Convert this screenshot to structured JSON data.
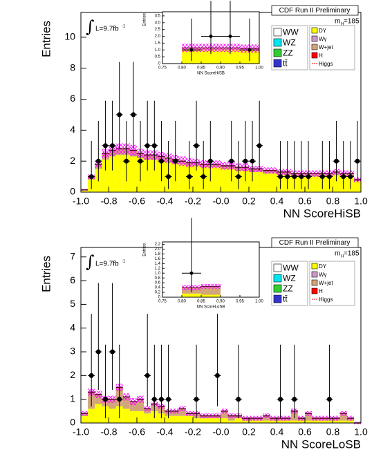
{
  "chart_data": [
    {
      "type": "stacked_histogram",
      "xlabel": "NN ScoreHiSB",
      "ylabel": "Entries",
      "run_label": "CDF Run II Preliminary",
      "integral": "∫",
      "lumi": "L=9.7fb",
      "lumi_exp": "-1",
      "mass": "m",
      "mass_sub": "H",
      "mass_value": "=185",
      "xlim": [
        -1,
        1
      ],
      "ylim": [
        0,
        11.6
      ],
      "xticks": [
        {
          "value": -1,
          "label": "-1.0"
        },
        -0.8,
        -0.6,
        -0.4,
        -0.2,
        {
          "value": 0,
          "label": "-0.0"
        },
        0.2,
        0.4,
        0.6,
        0.8,
        {
          "value": 1,
          "label": "1.0"
        }
      ],
      "yticks": [
        0,
        2,
        4,
        6,
        8,
        10
      ],
      "bins": [
        -1,
        -0.95,
        -0.9,
        -0.85,
        -0.8,
        -0.75,
        -0.7,
        -0.65,
        -0.6,
        -0.55,
        -0.5,
        -0.45,
        -0.4,
        -0.35,
        -0.3,
        -0.25,
        -0.2,
        -0.15,
        -0.1,
        -0.05,
        0,
        0.05,
        0.1,
        0.15,
        0.2,
        0.25,
        0.3,
        0.35,
        0.4,
        0.45,
        0.5,
        0.55,
        0.6,
        0.65,
        0.7,
        0.75,
        0.8,
        0.85,
        0.9,
        0.95,
        1
      ],
      "series": [
        {
          "name": "WW",
          "color": "#ffffff"
        },
        {
          "name": "WZ",
          "color": "#00e5ee"
        },
        {
          "name": "ZZ",
          "color": "#33cc33"
        },
        {
          "name": "tt̄",
          "color": "#3333cc"
        },
        {
          "name": "DY",
          "color": "#ffff00",
          "values": [
            0.1,
            0.8,
            1.5,
            2.1,
            2.3,
            2.4,
            2.4,
            2.3,
            2.2,
            2.1,
            2.1,
            2.0,
            1.9,
            1.8,
            1.8,
            1.7,
            1.7,
            1.6,
            1.6,
            1.6,
            1.5,
            1.5,
            1.4,
            1.4,
            1.3,
            1.3,
            1.2,
            1.2,
            1.1,
            1.1,
            1.0,
            1.0,
            1.0,
            1.0,
            1.0,
            1.0,
            1.1,
            1.0,
            1.0,
            0.7
          ]
        },
        {
          "name": "Wγ",
          "color": "#cc99cc"
        },
        {
          "name": "W+jet",
          "color": "#d2a679",
          "values": [
            0.05,
            0.2,
            0.3,
            0.4,
            0.4,
            0.4,
            0.4,
            0.4,
            0.3,
            0.3,
            0.3,
            0.3,
            0.3,
            0.3,
            0.2,
            0.2,
            0.2,
            0.2,
            0.2,
            0.2,
            0.2,
            0.2,
            0.2,
            0.2,
            0.2,
            0.2,
            0.2,
            0.2,
            0.2,
            0.2,
            0.2,
            0.2,
            0.2,
            0.2,
            0.2,
            0.2,
            0.2,
            0.2,
            0.2,
            0.1
          ]
        },
        {
          "name": "H",
          "color": "#ff0000"
        },
        {
          "name": "Higgs",
          "color": "#ff0000",
          "line_style": "dashed"
        }
      ],
      "uncertainty": [
        0.05,
        0.15,
        0.25,
        0.3,
        0.35,
        0.35,
        0.35,
        0.35,
        0.3,
        0.3,
        0.3,
        0.3,
        0.3,
        0.3,
        0.3,
        0.3,
        0.25,
        0.25,
        0.25,
        0.25,
        0.25,
        0.25,
        0.25,
        0.25,
        0.2,
        0.2,
        0.2,
        0.2,
        0.2,
        0.2,
        0.2,
        0.2,
        0.2,
        0.2,
        0.2,
        0.2,
        0.2,
        0.2,
        0.2,
        0.15
      ],
      "points": {
        "color": "#000000",
        "x": [
          -0.925,
          -0.875,
          -0.825,
          -0.775,
          -0.725,
          -0.675,
          -0.625,
          -0.575,
          -0.525,
          -0.475,
          -0.425,
          -0.375,
          -0.325,
          -0.225,
          -0.175,
          -0.125,
          -0.075,
          0.075,
          0.125,
          0.175,
          0.225,
          0.275,
          0.425,
          0.475,
          0.525,
          0.575,
          0.625,
          0.725,
          0.775,
          0.825,
          0.875,
          0.925,
          0.975
        ],
        "y": [
          1,
          2,
          3,
          3,
          5,
          2,
          5,
          2,
          3,
          3,
          2,
          1,
          2,
          1,
          3,
          1,
          2,
          2,
          1,
          2,
          2,
          3,
          1,
          1,
          1,
          1,
          1,
          1,
          1,
          2,
          1,
          1,
          2
        ],
        "yerr_low": [
          0.8,
          1.3,
          1.6,
          1.6,
          2.2,
          1.3,
          2.2,
          1.3,
          1.6,
          1.6,
          1.3,
          0.8,
          1.3,
          0.8,
          1.6,
          0.8,
          1.3,
          1.3,
          0.8,
          1.3,
          1.3,
          1.6,
          0.8,
          0.8,
          0.8,
          0.8,
          0.8,
          0.8,
          0.8,
          1.3,
          0.8,
          0.8,
          1.3
        ],
        "yerr_high": [
          2.3,
          2.6,
          2.9,
          2.9,
          3.4,
          2.6,
          3.4,
          2.6,
          2.9,
          2.9,
          2.6,
          2.3,
          2.6,
          2.3,
          2.9,
          2.3,
          2.6,
          2.6,
          2.3,
          2.6,
          2.6,
          2.9,
          2.3,
          2.3,
          2.3,
          2.3,
          2.3,
          2.3,
          2.3,
          2.6,
          2.3,
          2.3,
          2.6
        ]
      },
      "inset": {
        "xlabel": "NN ScoreHiSB",
        "ylabel": "Entries",
        "xlim": [
          0.75,
          1
        ],
        "ylim": [
          0,
          3.8
        ],
        "xticks": [
          0.75,
          {
            "value": 0.8,
            "label": "0.80"
          },
          0.85,
          {
            "value": 0.9,
            "label": "0.90"
          },
          0.95,
          {
            "value": 1,
            "label": "1.00"
          }
        ],
        "yticks": [
          0,
          0.5,
          {
            "value": 1,
            "label": "1.0"
          },
          1.5,
          {
            "value": 2,
            "label": "2.0"
          },
          2.5,
          {
            "value": 3,
            "label": "3.0"
          },
          3.5
        ],
        "bins": [
          0.75,
          0.8,
          0.85,
          0.9,
          0.95,
          1
        ],
        "series": [
          {
            "color": "#ffff00",
            "values": [
              0,
              1.0,
              1.0,
              1.0,
              1.0
            ]
          },
          {
            "color": "#d2a679",
            "values": [
              0,
              0.15,
              0.15,
              0.15,
              0.1
            ]
          }
        ],
        "uncertainty": [
          0,
          0.3,
          0.3,
          0.3,
          0.3
        ],
        "points": {
          "color": "#000000",
          "x": [
            0.825,
            0.875,
            0.925,
            0.975
          ],
          "y": [
            1,
            2,
            2,
            1
          ],
          "yerr_low": [
            0.8,
            1.3,
            1.3,
            0.8
          ],
          "yerr_high": [
            2.3,
            2.6,
            2.6,
            2.3
          ]
        }
      }
    },
    {
      "type": "stacked_histogram",
      "xlabel": "NN ScoreLoSB",
      "ylabel": "Entries",
      "run_label": "CDF Run II Preliminary",
      "integral": "∫",
      "lumi": "L=9.7fb",
      "lumi_exp": "-1",
      "mass": "m",
      "mass_sub": "H",
      "mass_value": "=185",
      "xlim": [
        -1,
        1
      ],
      "ylim": [
        0,
        7.4
      ],
      "xticks": [
        {
          "value": -1,
          "label": "-1.0"
        },
        -0.8,
        -0.6,
        -0.4,
        -0.2,
        {
          "value": 0,
          "label": "-0.0"
        },
        0.2,
        0.4,
        0.6,
        0.8,
        {
          "value": 1,
          "label": "1.0"
        }
      ],
      "yticks": [
        0,
        1,
        2,
        3,
        4,
        5,
        6,
        7
      ],
      "bins": [
        -1,
        -0.95,
        -0.9,
        -0.85,
        -0.8,
        -0.75,
        -0.7,
        -0.65,
        -0.6,
        -0.55,
        -0.5,
        -0.45,
        -0.4,
        -0.35,
        -0.3,
        -0.25,
        -0.2,
        -0.15,
        -0.1,
        -0.05,
        0,
        0.05,
        0.1,
        0.15,
        0.2,
        0.25,
        0.3,
        0.35,
        0.4,
        0.45,
        0.5,
        0.55,
        0.6,
        0.65,
        0.7,
        0.75,
        0.8,
        0.85,
        0.9,
        0.95,
        1
      ],
      "series": [
        {
          "name": "WW",
          "color": "#ffffff"
        },
        {
          "name": "WZ",
          "color": "#00e5ee"
        },
        {
          "name": "ZZ",
          "color": "#33cc33"
        },
        {
          "name": "tt̄",
          "color": "#3333cc"
        },
        {
          "name": "DY",
          "color": "#ffff00",
          "values": [
            0.3,
            0.6,
            0.8,
            0.7,
            0.6,
            0.7,
            0.6,
            0.5,
            0.5,
            0.4,
            0.5,
            0.4,
            0.3,
            0.3,
            0.3,
            0.3,
            0.2,
            0.2,
            0.2,
            0.2,
            0.2,
            0.1,
            0.2,
            0.1,
            0.1,
            0.1,
            0.1,
            0.1,
            0.1,
            0.1,
            0.1,
            0.1,
            0.1,
            0.1,
            0.1,
            0.1,
            0.1,
            0.1,
            0.1,
            0.0
          ]
        },
        {
          "name": "Wγ",
          "color": "#cc99cc"
        },
        {
          "name": "W+jet",
          "color": "#d2a679",
          "values": [
            0.1,
            0.7,
            0.4,
            0.3,
            0.4,
            0.8,
            0.5,
            0.4,
            0.5,
            0.2,
            0.3,
            0.3,
            0.2,
            0.2,
            0.3,
            0.1,
            0.2,
            0.1,
            0.1,
            0.1,
            0.3,
            0.2,
            0.1,
            0.1,
            0.1,
            0.1,
            0.2,
            0.1,
            0.1,
            0.1,
            0.4,
            0.1,
            0.3,
            0.1,
            0.1,
            0.1,
            0.1,
            0.3,
            0.1,
            0.0
          ]
        },
        {
          "name": "H",
          "color": "#ff0000"
        },
        {
          "name": "Higgs",
          "color": "#ff0000",
          "line_style": "dashed"
        }
      ],
      "uncertainty": [
        0.1,
        0.15,
        0.15,
        0.15,
        0.15,
        0.15,
        0.15,
        0.15,
        0.15,
        0.1,
        0.1,
        0.1,
        0.1,
        0.1,
        0.1,
        0.1,
        0.1,
        0.1,
        0.1,
        0.1,
        0.1,
        0.1,
        0.1,
        0.1,
        0.1,
        0.1,
        0.1,
        0.1,
        0.1,
        0.1,
        0.1,
        0.1,
        0.1,
        0.1,
        0.1,
        0.1,
        0.1,
        0.1,
        0.1,
        0.05
      ],
      "points": {
        "color": "#000000",
        "x": [
          -0.925,
          -0.875,
          -0.825,
          -0.775,
          -0.725,
          -0.525,
          -0.475,
          -0.425,
          -0.375,
          -0.175,
          -0.025,
          0.125,
          0.425,
          0.525,
          0.775
        ],
        "y": [
          2,
          3,
          1,
          3,
          1,
          2,
          1,
          1,
          1,
          1,
          2,
          1,
          1,
          1,
          1
        ],
        "yerr_low": [
          1.3,
          1.6,
          0.8,
          1.6,
          0.8,
          1.3,
          0.8,
          0.8,
          0.8,
          0.8,
          1.3,
          0.8,
          0.8,
          0.8,
          0.8
        ],
        "yerr_high": [
          2.6,
          2.9,
          2.3,
          2.9,
          2.3,
          2.6,
          2.3,
          2.3,
          2.3,
          2.3,
          2.6,
          2.3,
          2.3,
          2.3,
          2.3
        ]
      },
      "inset": {
        "xlabel": "NN ScoreLoSB",
        "ylabel": "Entries",
        "xlim": [
          0.75,
          1
        ],
        "ylim": [
          0,
          2.3
        ],
        "xticks": [
          0.75,
          {
            "value": 0.8,
            "label": "0.80"
          },
          0.85,
          {
            "value": 0.9,
            "label": "0.90"
          },
          0.95,
          {
            "value": 1,
            "label": "1.00"
          }
        ],
        "yticks": [
          0,
          0.2,
          0.4,
          0.6,
          0.8,
          {
            "value": 1,
            "label": "1.0"
          },
          1.2,
          1.4,
          1.6,
          1.8,
          {
            "value": 2,
            "label": "2.0"
          },
          2.2
        ],
        "bins": [
          0.75,
          0.8,
          0.85,
          0.9,
          0.95,
          1
        ],
        "series": [
          {
            "color": "#ffff00",
            "values": [
              0,
              0.15,
              0.1,
              0,
              0
            ]
          },
          {
            "color": "#d2a679",
            "values": [
              0,
              0.25,
              0.35,
              0,
              0
            ]
          }
        ],
        "uncertainty": [
          0,
          0.1,
          0.1,
          0,
          0
        ],
        "points": {
          "color": "#000000",
          "x": [
            0.825
          ],
          "y": [
            1
          ],
          "yerr_low": [
            0.8
          ],
          "yerr_high": [
            2.3
          ]
        }
      }
    }
  ]
}
